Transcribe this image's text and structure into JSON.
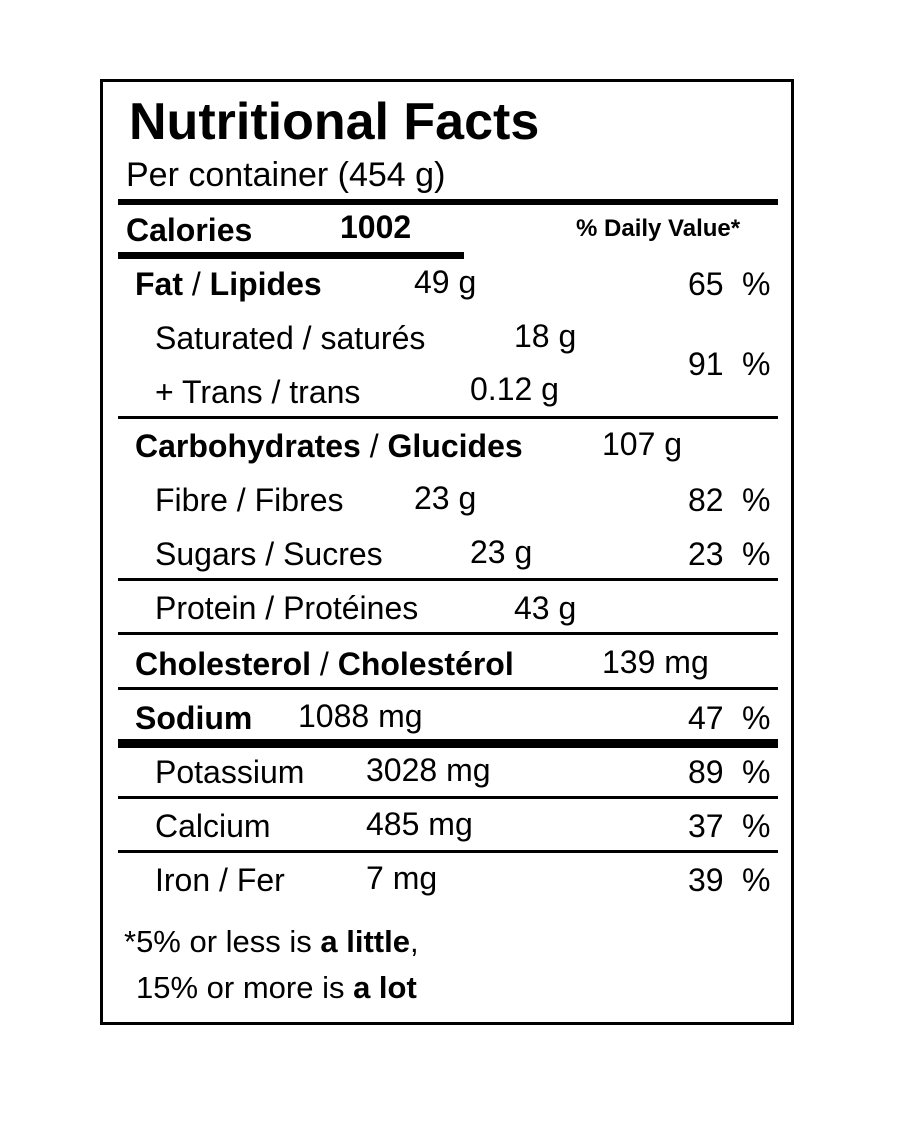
{
  "title": "Nutritional Facts",
  "serving": "Per container (454 g)",
  "calories": {
    "label": "Calories",
    "value": "1002"
  },
  "dv_header": "% Daily Value*",
  "fat": {
    "label_en": "Fat",
    "sep": " / ",
    "label_fr": "Lipides",
    "amount": "49 g",
    "dv": "65",
    "pct": "%"
  },
  "saturated": {
    "label": "Saturated / saturés",
    "amount": "18 g"
  },
  "trans": {
    "label": "+ Trans / trans",
    "amount": "0.12 g"
  },
  "sat_trans_dv": {
    "dv": "91",
    "pct": "%"
  },
  "carbs": {
    "label_en": "Carbohydrates",
    "sep": " / ",
    "label_fr": "Glucides",
    "amount": "107 g"
  },
  "fibre": {
    "label": "Fibre / Fibres",
    "amount": "23 g",
    "dv": "82",
    "pct": "%"
  },
  "sugars": {
    "label": "Sugars / Sucres",
    "amount": "23 g",
    "dv": "23",
    "pct": "%"
  },
  "protein": {
    "label": "Protein / Protéines",
    "amount": "43 g"
  },
  "cholesterol": {
    "label_en": "Cholesterol",
    "sep": " / ",
    "label_fr": "Cholestérol",
    "amount": "139 mg"
  },
  "sodium": {
    "label": "Sodium",
    "amount": "1088 mg",
    "dv": "47",
    "pct": "%"
  },
  "potassium": {
    "label": "Potassium",
    "amount": "3028 mg",
    "dv": "89",
    "pct": "%"
  },
  "calcium": {
    "label": "Calcium",
    "amount": "485 mg",
    "dv": "37",
    "pct": "%"
  },
  "iron": {
    "label": "Iron / Fer",
    "amount": "7 mg",
    "dv": "39",
    "pct": "%"
  },
  "footnote": {
    "line1_pre": "*5% or less is ",
    "line1_bold": "a little",
    "line1_post": ",",
    "line2_pre": "15% or more is ",
    "line2_bold": "a lot"
  }
}
